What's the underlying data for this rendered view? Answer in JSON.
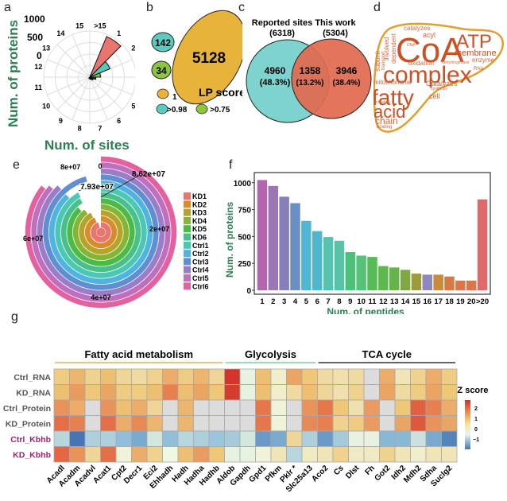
{
  "panels": {
    "a": "a",
    "b": "b",
    "c": "c",
    "d": "d",
    "e": "e",
    "f": "f",
    "g": "g"
  },
  "chart_data": [
    {
      "id": "a",
      "type": "polar-bar",
      "ylabel": "Num. of proteins",
      "xlabel": "Num. of sites",
      "radial_ticks": [
        "0",
        "500",
        "1000"
      ],
      "categories": [
        ">15",
        "1",
        "2",
        "3",
        "4",
        "5",
        "6",
        "7",
        "8",
        "9",
        "10",
        "11",
        "12",
        "13",
        "14",
        "15"
      ],
      "values": [
        0,
        1000,
        250,
        60,
        20,
        8,
        4,
        2,
        1,
        1,
        0,
        0,
        0,
        0,
        0,
        0
      ],
      "colors": {
        "1": "#e8766f",
        "2": "#56c7b8",
        "3": "#7cbf4a"
      }
    },
    {
      "id": "b",
      "type": "bubble",
      "title": "LP score",
      "bubbles": [
        {
          "label": "142",
          "group": ">0.98",
          "color": "#5ec9bf"
        },
        {
          "label": "34",
          "group": ">0.75",
          "color": "#8cc63f"
        },
        {
          "label": "5128",
          "group": "1",
          "color": "#e8b33b"
        }
      ],
      "legend": [
        {
          "label": "1",
          "color": "#e8b33b"
        },
        {
          "label": ">0.98",
          "color": "#5ec9bf"
        },
        {
          "label": ">0.75",
          "color": "#8cc63f"
        }
      ]
    },
    {
      "id": "c",
      "type": "venn",
      "sets": [
        {
          "name": "Reported sites",
          "count": "(6318)",
          "color": "#7fd3cf"
        },
        {
          "name": "This work",
          "count": "(5304)",
          "color": "#e06a50"
        }
      ],
      "regions": [
        {
          "value": "4960",
          "pct": "(48.3%)"
        },
        {
          "value": "1358",
          "pct": "(13.2%)"
        },
        {
          "value": "3946",
          "pct": "(38.4%)"
        }
      ]
    },
    {
      "id": "d",
      "type": "wordcloud",
      "words": [
        "CoA",
        "ATP",
        "complex",
        "fatty",
        "acid",
        "membrane",
        "chain",
        "catalyzes",
        "acyl",
        "mitochondrial",
        "Catalyzes",
        "cell",
        "oxidation",
        "enzyme",
        "dependent",
        "involved",
        "subunit",
        "transport",
        "DNA",
        "RNA",
        "dehydrogenase",
        "synthesis",
        "formation",
        "binding"
      ]
    },
    {
      "id": "e",
      "type": "radial-bar",
      "angle_ticks": [
        "0",
        "2e+07",
        "4e+07",
        "6e+07",
        "8e+07"
      ],
      "annotations": [
        "8.62e+07",
        "7.93e+07"
      ],
      "max": 86200000,
      "series": [
        {
          "name": "KD1",
          "value": 86200000,
          "color": "#e8766f"
        },
        {
          "name": "KD2",
          "value": 84000000,
          "color": "#d98a2b"
        },
        {
          "name": "KD3",
          "value": 83000000,
          "color": "#b5a32a"
        },
        {
          "name": "KD4",
          "value": 81000000,
          "color": "#86b535"
        },
        {
          "name": "KD5",
          "value": 79300000,
          "color": "#4cbb45"
        },
        {
          "name": "KD6",
          "value": 82000000,
          "color": "#49c08a"
        },
        {
          "name": "Ctrl1",
          "value": 82500000,
          "color": "#4cc7b3"
        },
        {
          "name": "Ctrl2",
          "value": 79300000,
          "color": "#4fb5e0"
        },
        {
          "name": "Ctrl3",
          "value": 86200000,
          "color": "#5f8fd2"
        },
        {
          "name": "Ctrl4",
          "value": 79300000,
          "color": "#9a7cc8"
        },
        {
          "name": "Ctrl5",
          "value": 78000000,
          "color": "#c06fbf"
        },
        {
          "name": "Ctrl6",
          "value": 77000000,
          "color": "#e2619e"
        }
      ]
    },
    {
      "id": "f",
      "type": "bar",
      "xlabel": "Num. of peptides",
      "ylabel": "Num. of proteins",
      "ylim": [
        0,
        1050
      ],
      "yticks": [
        0,
        250,
        500,
        750,
        1000
      ],
      "categories": [
        "1",
        "2",
        "3",
        "4",
        "5",
        "6",
        "7",
        "8",
        "9",
        "10",
        "11",
        "12",
        "13",
        "14",
        "15",
        "16",
        "17",
        "18",
        "19",
        "20",
        ">20"
      ],
      "values": [
        1025,
        970,
        870,
        810,
        645,
        550,
        495,
        460,
        355,
        322,
        310,
        225,
        212,
        190,
        155,
        145,
        145,
        128,
        90,
        90,
        845
      ],
      "colors": [
        "#b266ad",
        "#9d77b5",
        "#8580bb",
        "#6a8fc7",
        "#50b6d1",
        "#4fb6d0",
        "#55c3b0",
        "#56c3a8",
        "#4fc07a",
        "#55c27a",
        "#57bb56",
        "#5db84e",
        "#68b24c",
        "#7fa845",
        "#9e9b3d",
        "#8e87c2",
        "#c98a3a",
        "#d57a44",
        "#dd7648",
        "#df7447",
        "#e06a6a"
      ]
    },
    {
      "id": "g",
      "type": "heatmap",
      "legend_title": "Z score",
      "legend_ticks": [
        "2",
        "1",
        "0",
        "−1"
      ],
      "groups": [
        {
          "name": "Fatty acid metabolism",
          "start": 0,
          "end": 10,
          "color": "#e3b25a"
        },
        {
          "name": "Glycolysis",
          "start": 11,
          "end": 16,
          "color": "#7fcfa6"
        },
        {
          "name": "TCA cycle",
          "start": 17,
          "end": 25,
          "color": "#333333"
        }
      ],
      "rows": [
        {
          "name": "Ctrl_RNA",
          "color": "#555555"
        },
        {
          "name": "KD_RNA",
          "color": "#555555"
        },
        {
          "name": "Ctrl_Protein",
          "color": "#555555"
        },
        {
          "name": "KD_Protein",
          "color": "#555555"
        },
        {
          "name": "Ctrl_Kbhb",
          "color": "#a0246e"
        },
        {
          "name": "KD_Kbhb",
          "color": "#a0246e"
        }
      ],
      "columns": [
        "Acadl",
        "Acadm",
        "Acadvl",
        "Acat1",
        "Cpt2",
        "Decr1",
        "Eci2",
        "Ehhadh",
        "Hadh",
        "Hadha",
        "Hadhb",
        "Aldob",
        "Gapdh",
        "Gpd1",
        "Pfkm",
        "Pklr *",
        "Slc25a13",
        "Aco2",
        "Cs",
        "Dlst",
        "Fh",
        "Got2",
        "Idh2",
        "Mdh2",
        "Sdha",
        "Suclg2"
      ],
      "values": [
        [
          0.9,
          1.2,
          0.8,
          1.1,
          0.7,
          0.6,
          0.8,
          1.3,
          0.9,
          1.2,
          0.7,
          2.8,
          -0.1,
          1.1,
          0.2,
          1.4,
          1.0,
          0.6,
          0.5,
          0.6,
          null,
          1.3,
          0.4,
          0.8,
          1.3,
          0.9
        ],
        [
          1.1,
          1.5,
          1.0,
          1.4,
          0.9,
          0.9,
          1.1,
          1.8,
          1.1,
          1.4,
          1.0,
          2.7,
          -0.1,
          1.1,
          0.2,
          0.6,
          1.1,
          0.7,
          0.5,
          0.8,
          null,
          1.4,
          0.6,
          0.9,
          1.4,
          1.0
        ],
        [
          1.6,
          1.3,
          null,
          1.6,
          1.1,
          1.3,
          0.7,
          null,
          1.2,
          null,
          null,
          null,
          null,
          1.9,
          0.1,
          null,
          1.6,
          1.9,
          1.0,
          0.5,
          1.5,
          null,
          1.0,
          2.2,
          1.8,
          1.3
        ],
        [
          2.0,
          1.8,
          null,
          2.0,
          1.3,
          1.7,
          1.2,
          null,
          1.2,
          null,
          null,
          null,
          null,
          1.9,
          0.1,
          null,
          1.7,
          1.8,
          0.8,
          0.9,
          1.5,
          null,
          1.4,
          2.3,
          1.6,
          1.4
        ],
        [
          -0.6,
          -2.0,
          -0.7,
          -0.7,
          -1.0,
          -1.3,
          -0.3,
          -1.0,
          -0.6,
          -0.7,
          -0.9,
          -0.8,
          -0.3,
          -1.5,
          -1.3,
          0.7,
          -0.7,
          -1.5,
          -0.8,
          -0.1,
          -0.1,
          -1.1,
          -1.1,
          -0.4,
          -1.3,
          -1.8
        ],
        [
          2.1,
          1.6,
          0.7,
          2.0,
          0.1,
          1.3,
          0.8,
          0.0,
          1.1,
          1.5,
          1.0,
          -0.1,
          -0.1,
          0.1,
          0.4,
          -0.6,
          0.3,
          0.4,
          0.8,
          0.3,
          0.3,
          0.8,
          0.4,
          0.2,
          0.4,
          0.4
        ]
      ]
    }
  ]
}
